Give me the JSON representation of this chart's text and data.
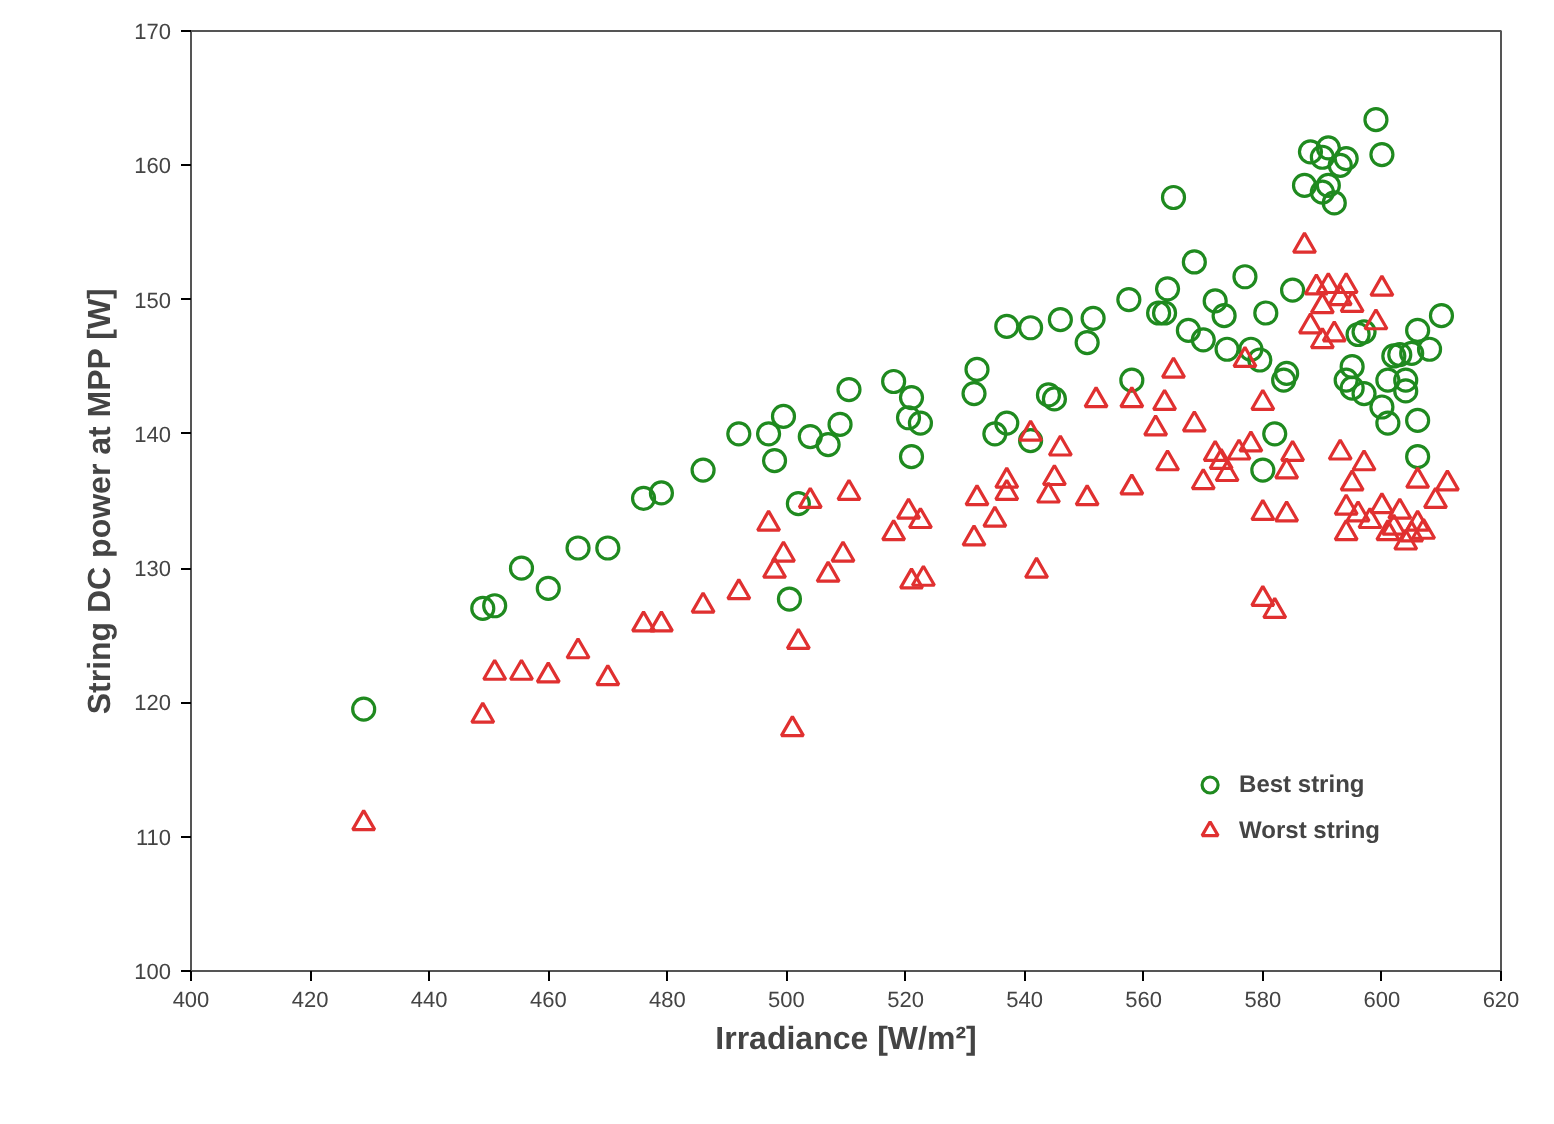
{
  "chart_data": {
    "type": "scatter",
    "xlabel": "Irradiance [W/m²]",
    "ylabel": "String DC power at MPP [W]",
    "xlim": [
      400,
      620
    ],
    "xticks": [
      400,
      420,
      440,
      460,
      480,
      500,
      520,
      540,
      560,
      580,
      600,
      620
    ],
    "ylim": [
      100,
      170
    ],
    "yticks": [
      100,
      110,
      120,
      130,
      140,
      150,
      160,
      170
    ],
    "grid": false,
    "legend": "bottom right",
    "series": [
      {
        "name": "Best string",
        "color": "#1f8a1f",
        "marker": "circle",
        "x": [
          429,
          449,
          451,
          455.5,
          460,
          465,
          470,
          476,
          479,
          486,
          492,
          497,
          498,
          499.5,
          500.5,
          502,
          504,
          507,
          509,
          510.5,
          518,
          520.5,
          521,
          521,
          522.5,
          531.5,
          532,
          535,
          537,
          537,
          541,
          541,
          544,
          545,
          546,
          550.5,
          551.5,
          557.5,
          558,
          562.5,
          563.5,
          564,
          565,
          567.5,
          568.5,
          570,
          572,
          573.5,
          574,
          577,
          578,
          579.5,
          580.5,
          580,
          582,
          583.5,
          584,
          585,
          587,
          588,
          590,
          590,
          591,
          591,
          592,
          593,
          594,
          595,
          594,
          595,
          596,
          597,
          597,
          599,
          600,
          600,
          601,
          601,
          602,
          603,
          604,
          605,
          606,
          606,
          606,
          608,
          610,
          604
        ],
        "values": [
          119.5,
          127,
          127.2,
          130,
          128.5,
          131.5,
          131.5,
          135.2,
          135.6,
          137.3,
          140,
          140,
          138,
          141.3,
          127.7,
          134.8,
          139.8,
          139.2,
          140.7,
          143.3,
          143.9,
          141.2,
          142.7,
          138.3,
          140.8,
          143,
          144.8,
          140,
          140.8,
          148,
          147.9,
          139.5,
          142.9,
          142.6,
          148.5,
          146.8,
          148.6,
          150,
          144,
          149,
          149,
          150.8,
          157.6,
          147.7,
          152.8,
          147,
          149.9,
          148.8,
          146.3,
          151.7,
          146.3,
          145.5,
          149,
          137.3,
          140,
          144,
          144.5,
          150.7,
          158.5,
          161,
          158,
          160.6,
          161.3,
          158.5,
          157.2,
          160,
          160.5,
          145,
          144,
          143.4,
          147.4,
          147.6,
          143,
          163.4,
          160.8,
          142,
          144,
          140.8,
          145.8,
          145.9,
          144,
          146,
          141,
          138.3,
          147.7,
          146.3,
          148.8,
          143.2
        ]
      },
      {
        "name": "Worst string",
        "color": "#e03030",
        "marker": "triangle",
        "x": [
          429,
          449,
          451,
          455.5,
          460,
          465,
          470,
          476,
          479,
          486,
          492,
          497,
          498,
          499.5,
          501,
          502,
          504,
          507,
          509.5,
          510.5,
          518,
          520.5,
          521,
          522.5,
          523,
          531.5,
          532,
          535,
          537,
          537,
          541,
          542,
          544,
          545,
          546,
          550.5,
          552,
          558,
          558,
          562,
          563.5,
          564,
          565,
          568.5,
          570,
          572,
          573,
          574,
          576,
          577,
          578,
          580,
          580,
          580,
          582,
          584,
          584,
          585,
          587,
          588,
          589,
          590,
          590,
          591,
          592,
          593,
          594,
          595,
          599,
          600,
          593,
          594,
          594,
          595,
          596,
          597,
          598,
          600,
          601,
          602,
          603,
          604,
          605,
          606,
          606,
          607,
          609,
          611
        ],
        "values": [
          111,
          119,
          122.2,
          122.2,
          122,
          123.8,
          121.8,
          125.8,
          125.8,
          127.2,
          128.2,
          133.3,
          129.8,
          131,
          118,
          124.5,
          135,
          129.5,
          131,
          135.6,
          132.6,
          134.2,
          129,
          133.5,
          129.2,
          132.2,
          135.2,
          133.6,
          136.5,
          135.6,
          140,
          129.8,
          135.4,
          136.7,
          138.9,
          135.2,
          142.5,
          142.5,
          136,
          140.4,
          142.3,
          137.8,
          144.7,
          140.7,
          136.4,
          138.5,
          137.9,
          137,
          138.6,
          145.5,
          139.2,
          142.3,
          134.1,
          127.7,
          126.8,
          137.2,
          134,
          138.5,
          154,
          148,
          150.9,
          146.9,
          149.5,
          151,
          147.4,
          150.1,
          151,
          149.6,
          148.3,
          150.8,
          138.6,
          134.5,
          132.6,
          136.3,
          134,
          137.8,
          133.5,
          134.6,
          132.6,
          133,
          134.2,
          131.9,
          132.5,
          136.5,
          133.3,
          132.7,
          135,
          136.3
        ]
      }
    ]
  }
}
